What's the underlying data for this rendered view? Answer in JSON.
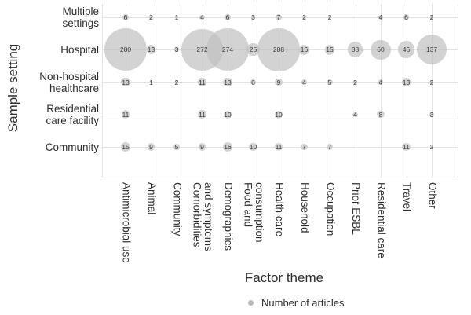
{
  "chart_data": {
    "type": "scatter",
    "subtype": "bubble-matrix",
    "title": "",
    "xlabel": "Factor theme",
    "ylabel": "Sample setting",
    "legend_label": "Number of articles",
    "legend_position": "bottom-center",
    "grid": true,
    "size_encoding": "bubble area proportional to number of articles",
    "x_categories": [
      "Antimicrobial use",
      "Animal",
      "Community",
      "Comorbidities and symptoms",
      "Demographics",
      "Food and consumption",
      "Health care",
      "Household",
      "Occupation",
      "Prior ESBL",
      "Residential care",
      "Travel",
      "Other"
    ],
    "x_display": [
      "Antimicrobial use",
      "Animal",
      "Community",
      "Comorbidities\nand symptoms",
      "Demographics",
      "Food and\nconsumption",
      "Health care",
      "Household",
      "Occupation",
      "Prior ESBL",
      "Residential care",
      "Travel",
      "Other"
    ],
    "y_categories": [
      "Multiple settings",
      "Hospital",
      "Non-hospital healthcare",
      "Residential care facility",
      "Community"
    ],
    "y_display": [
      "Multiple\nsettings",
      "Hospital",
      "Non-hospital\nhealthcare",
      "Residential\ncare facility",
      "Community"
    ],
    "values": [
      [
        6,
        2,
        1,
        4,
        6,
        3,
        7,
        2,
        2,
        null,
        4,
        6,
        2
      ],
      [
        280,
        13,
        3,
        272,
        274,
        25,
        288,
        16,
        15,
        38,
        60,
        46,
        137
      ],
      [
        13,
        1,
        2,
        11,
        13,
        6,
        9,
        4,
        5,
        2,
        4,
        13,
        2
      ],
      [
        11,
        null,
        null,
        11,
        10,
        null,
        10,
        null,
        null,
        4,
        8,
        null,
        3
      ],
      [
        15,
        9,
        5,
        9,
        16,
        10,
        11,
        7,
        7,
        null,
        null,
        11,
        2
      ]
    ],
    "colors": {
      "bubble_fill": "#c1c1c1",
      "gridline": "#e3e3e3",
      "text": "#2e2e2e"
    }
  }
}
